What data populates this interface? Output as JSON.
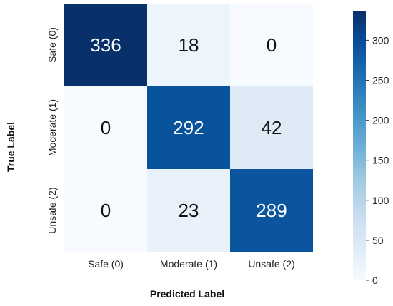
{
  "chart_data": {
    "type": "heatmap",
    "title": "",
    "xlabel": "Predicted Label",
    "ylabel": "True Label",
    "x_categories": [
      "Safe (0)",
      "Moderate (1)",
      "Unsafe (2)"
    ],
    "y_categories": [
      "Safe (0)",
      "Moderate (1)",
      "Unsafe (2)"
    ],
    "values": [
      [
        336,
        18,
        0
      ],
      [
        0,
        292,
        42
      ],
      [
        0,
        23,
        289
      ]
    ],
    "colorbar": {
      "min": 0,
      "max": 336,
      "ticks": [
        0,
        50,
        100,
        150,
        200,
        250,
        300
      ],
      "colormap": "Blues"
    }
  }
}
